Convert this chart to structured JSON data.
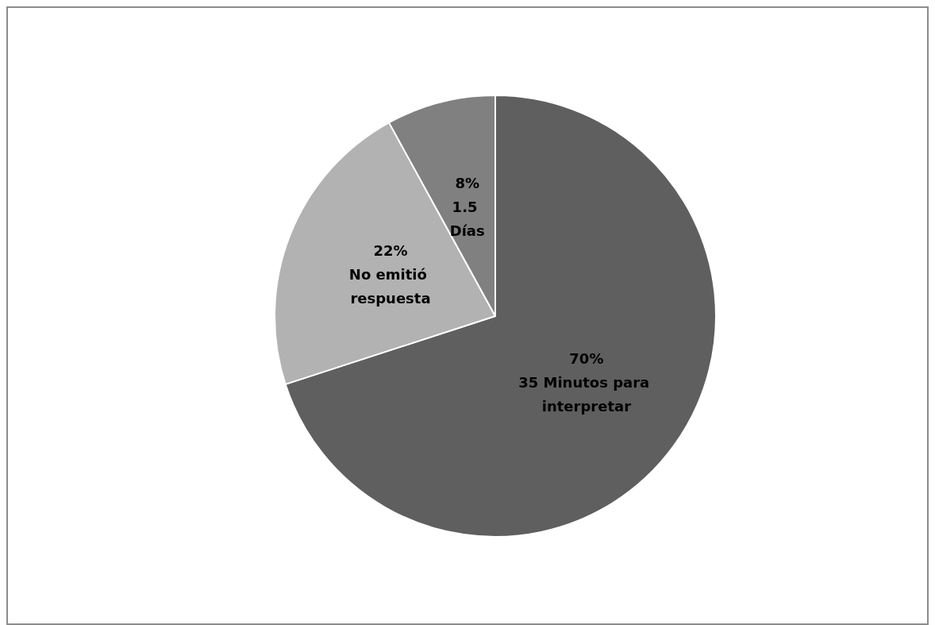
{
  "chart_data": {
    "type": "pie",
    "categories": [
      "35 Minutos para interpretar",
      "No emitió respuesta",
      "1.5 Días"
    ],
    "values": [
      70,
      22,
      8
    ],
    "colors": [
      "#5f5f5f",
      "#b2b2b2",
      "#808080"
    ],
    "value_labels": [
      "70%",
      "22%",
      "8%"
    ],
    "legend": false
  }
}
